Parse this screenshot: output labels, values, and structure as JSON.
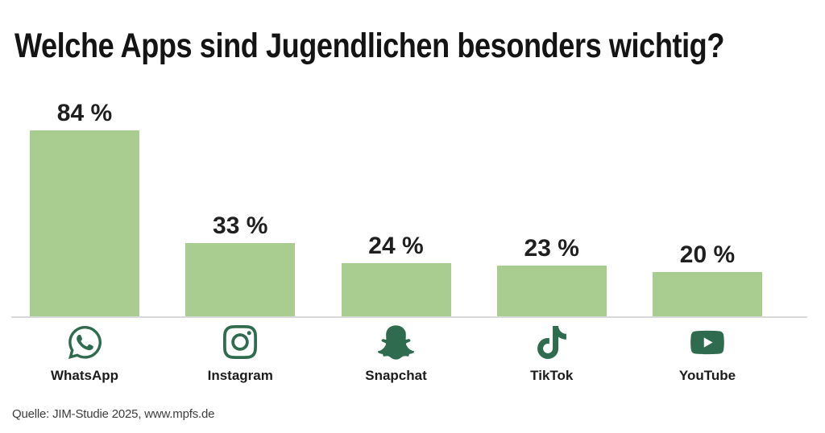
{
  "header": {
    "title": "Welche Apps sind Jugendlichen besonders wichtig?"
  },
  "footer": {
    "source": "Quelle: JIM-Studie 2025, www.mpfs.de"
  },
  "colors": {
    "bar": "#a9cc90",
    "icon": "#2f6b4e",
    "baseline": "#d9d9d9"
  },
  "chart_data": {
    "type": "bar",
    "title": "Welche Apps sind Jugendlichen besonders wichtig?",
    "categories": [
      "WhatsApp",
      "Instagram",
      "Snapchat",
      "TikTok",
      "YouTube"
    ],
    "values": [
      84,
      33,
      24,
      23,
      20
    ],
    "value_labels": [
      "84 %",
      "33 %",
      "24 %",
      "23 %",
      "20 %"
    ],
    "unit": "%",
    "ylim": [
      0,
      100
    ],
    "grid": false,
    "legend": "none",
    "icons": [
      "whatsapp-icon",
      "instagram-icon",
      "snapchat-icon",
      "tiktok-icon",
      "youtube-icon"
    ],
    "source": "Quelle: JIM-Studie 2025, www.mpfs.de"
  }
}
